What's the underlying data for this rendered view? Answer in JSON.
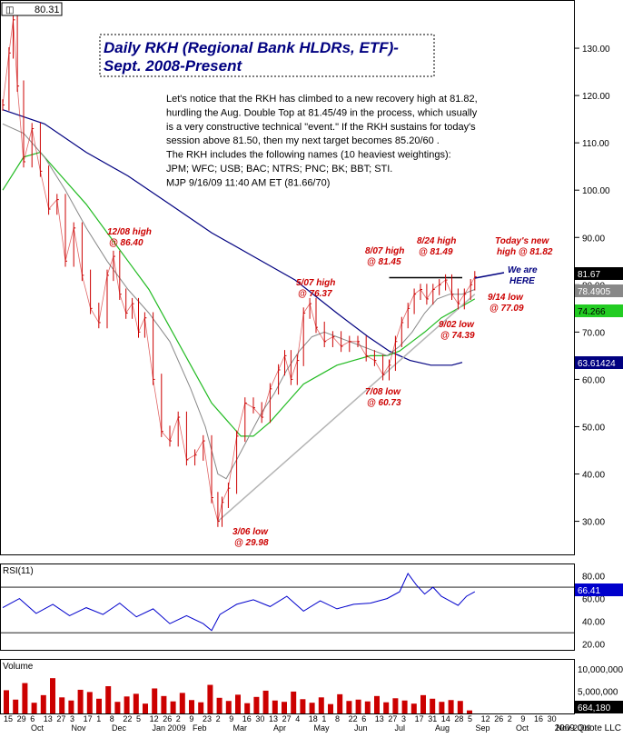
{
  "header": {
    "corner_value": "80.31",
    "title_line1": "Daily RKH (Regional Bank HLDRs, ETF)-",
    "title_line2": "Sept. 2008-Present"
  },
  "commentary": [
    "Let's notice that the RKH has climbed to a new recovery high at 81.82,",
    "hurdling the Aug. Double Top at 81.45/49 in the process, which usually",
    "is a very constructive technical \"event.\"  If the RKH sustains for today's",
    "session above 81.50, then my next target becomes 85.20/60 .",
    "The RKH includes the following names (10 heaviest weightings):",
    "JPM; WFC; USB; BAC; NTRS; PNC; BK; BBT; STI.",
    "MJP  9/16/09  11:40 AM ET  (81.66/70)"
  ],
  "colors": {
    "price": "#cc0000",
    "ma_short": "#888888",
    "ma_mid": "#22bb22",
    "ma_long": "#000080",
    "trendline": "#b4b4b4",
    "annotation": "#cc0000",
    "we_are_here": "#000080",
    "rsi_line": "#0000cc",
    "volume": "#cc0000"
  },
  "chart_data": [
    {
      "type": "line",
      "name": "price",
      "ylim": [
        23,
        140
      ],
      "yticks": [
        30,
        40,
        50,
        60,
        70,
        80,
        90,
        100,
        110,
        120,
        130
      ],
      "ytick_labels": [
        "30.00",
        "40.00",
        "50.00",
        "60.00",
        "70.00",
        "80.00",
        "90.00",
        "100.00",
        "110.00",
        "120.00",
        "130.00"
      ],
      "x_tick_labels": [
        "15",
        "29",
        "6",
        "13",
        "27",
        "3",
        "17",
        "1",
        "8",
        "22",
        "5",
        "12",
        "26",
        "2",
        "9",
        "23",
        "2",
        "9",
        "16",
        "30",
        "13",
        "27",
        "4",
        "18",
        "1",
        "8",
        "22",
        "6",
        "13",
        "27",
        "3",
        "17",
        "31",
        "14",
        "28",
        "5",
        "12",
        "26",
        "2",
        "9",
        "16",
        "30"
      ],
      "month_labels": [
        "Oct",
        "Nov",
        "Dec",
        "Jan 2009",
        "Feb",
        "Mar",
        "Apr",
        "May",
        "Jun",
        "Jul",
        "Aug",
        "Sep",
        "Oct",
        "Nov 2009"
      ],
      "price_path": [
        [
          0,
          118
        ],
        [
          3,
          129
        ],
        [
          5,
          136
        ],
        [
          7,
          122
        ],
        [
          10,
          106
        ],
        [
          14,
          113
        ],
        [
          18,
          104
        ],
        [
          22,
          96
        ],
        [
          26,
          98
        ],
        [
          30,
          85
        ],
        [
          34,
          92
        ],
        [
          38,
          82
        ],
        [
          42,
          75
        ],
        [
          46,
          72
        ],
        [
          50,
          82
        ],
        [
          53,
          86
        ],
        [
          56,
          78
        ],
        [
          59,
          74
        ],
        [
          62,
          76
        ],
        [
          65,
          70
        ],
        [
          68,
          73
        ],
        [
          72,
          60
        ],
        [
          76,
          49
        ],
        [
          80,
          47
        ],
        [
          84,
          52
        ],
        [
          88,
          43
        ],
        [
          92,
          44
        ],
        [
          96,
          47
        ],
        [
          100,
          35
        ],
        [
          103,
          30
        ],
        [
          105,
          34
        ],
        [
          108,
          37
        ],
        [
          112,
          48
        ],
        [
          116,
          55
        ],
        [
          120,
          54
        ],
        [
          124,
          52
        ],
        [
          128,
          58
        ],
        [
          132,
          62
        ],
        [
          135,
          65
        ],
        [
          138,
          60
        ],
        [
          141,
          64
        ],
        [
          144,
          74
        ],
        [
          147,
          76
        ],
        [
          150,
          71
        ],
        [
          154,
          68
        ],
        [
          158,
          69
        ],
        [
          162,
          67
        ],
        [
          166,
          68
        ],
        [
          170,
          68
        ],
        [
          174,
          65
        ],
        [
          178,
          64
        ],
        [
          182,
          61
        ],
        [
          185,
          63
        ],
        [
          188,
          68
        ],
        [
          191,
          72
        ],
        [
          194,
          75
        ],
        [
          197,
          78
        ],
        [
          200,
          79
        ],
        [
          203,
          77
        ],
        [
          206,
          79
        ],
        [
          209,
          80
        ],
        [
          212,
          81
        ],
        [
          215,
          78
        ],
        [
          218,
          76
        ],
        [
          221,
          78
        ],
        [
          224,
          80
        ],
        [
          226,
          81.7
        ]
      ],
      "ma_short_path": [
        [
          0,
          114
        ],
        [
          10,
          112
        ],
        [
          20,
          107
        ],
        [
          30,
          100
        ],
        [
          40,
          92
        ],
        [
          50,
          85
        ],
        [
          60,
          79
        ],
        [
          70,
          74
        ],
        [
          80,
          68
        ],
        [
          90,
          58
        ],
        [
          97,
          50
        ],
        [
          103,
          40
        ],
        [
          107,
          39
        ],
        [
          112,
          43
        ],
        [
          118,
          48
        ],
        [
          124,
          53
        ],
        [
          130,
          57
        ],
        [
          136,
          62
        ],
        [
          142,
          66
        ],
        [
          148,
          69
        ],
        [
          154,
          70
        ],
        [
          160,
          69
        ],
        [
          166,
          68
        ],
        [
          172,
          67
        ],
        [
          178,
          66
        ],
        [
          184,
          65
        ],
        [
          190,
          67
        ],
        [
          196,
          70
        ],
        [
          202,
          74
        ],
        [
          208,
          77
        ],
        [
          214,
          78
        ],
        [
          220,
          78
        ],
        [
          226,
          79
        ]
      ],
      "ma_mid_path": [
        [
          0,
          100
        ],
        [
          10,
          107
        ],
        [
          18,
          108
        ],
        [
          28,
          103
        ],
        [
          40,
          97
        ],
        [
          50,
          91
        ],
        [
          60,
          85
        ],
        [
          70,
          79
        ],
        [
          80,
          71
        ],
        [
          90,
          63
        ],
        [
          100,
          55
        ],
        [
          108,
          51
        ],
        [
          114,
          48
        ],
        [
          120,
          48
        ],
        [
          128,
          51
        ],
        [
          136,
          55
        ],
        [
          144,
          59
        ],
        [
          152,
          61
        ],
        [
          160,
          63
        ],
        [
          168,
          64
        ],
        [
          176,
          65
        ],
        [
          184,
          65
        ],
        [
          190,
          66
        ],
        [
          196,
          68
        ],
        [
          202,
          70
        ],
        [
          210,
          73
        ],
        [
          218,
          75
        ],
        [
          226,
          77
        ]
      ],
      "ma_long_path": [
        [
          0,
          117
        ],
        [
          20,
          114
        ],
        [
          40,
          108
        ],
        [
          60,
          103
        ],
        [
          80,
          97
        ],
        [
          100,
          91
        ],
        [
          120,
          86
        ],
        [
          140,
          81
        ],
        [
          160,
          74
        ],
        [
          175,
          69
        ],
        [
          185,
          66
        ],
        [
          195,
          64
        ],
        [
          205,
          63
        ],
        [
          215,
          63
        ],
        [
          220,
          63.6
        ]
      ],
      "trendline_path": [
        [
          103,
          30
        ],
        [
          226,
          78
        ]
      ],
      "resistance_line": [
        [
          185,
          81.5
        ],
        [
          220,
          81.5
        ]
      ],
      "labels": {
        "price_last": "81.67",
        "ma_short_last": "78.4905",
        "ma_mid_last": "74.266",
        "ma_long_last": "63.61424"
      },
      "annotations": [
        {
          "date": "12/08 high",
          "value": "@ 86.40"
        },
        {
          "date": "3/06 low",
          "value": "@ 29.98"
        },
        {
          "date": "5/07 high",
          "value": "@ 76.37"
        },
        {
          "date": "7/08 low",
          "value": "@ 60.73"
        },
        {
          "date": "8/07 high",
          "value": "@ 81.45"
        },
        {
          "date": "8/24 high",
          "value": "@ 81.49"
        },
        {
          "date": "Today's new",
          "value": "high @ 81.82"
        },
        {
          "date": "9/14 low",
          "value": "@ 77.09"
        },
        {
          "date": "9/02 low",
          "value": "@ 74.39"
        }
      ],
      "we_are_here": [
        "We are",
        "HERE"
      ]
    },
    {
      "type": "line",
      "name": "rsi",
      "title": "RSI(11)",
      "ylim": [
        15,
        90
      ],
      "yticks": [
        20,
        40,
        60,
        80
      ],
      "ytick_labels": [
        "20.00",
        "40.00",
        "60.00",
        "80.00"
      ],
      "reference_lines": [
        30,
        70
      ],
      "last_label": "66.41",
      "path": [
        [
          0,
          52
        ],
        [
          8,
          60
        ],
        [
          16,
          47
        ],
        [
          24,
          55
        ],
        [
          32,
          45
        ],
        [
          40,
          52
        ],
        [
          48,
          46
        ],
        [
          56,
          56
        ],
        [
          64,
          44
        ],
        [
          72,
          51
        ],
        [
          80,
          38
        ],
        [
          88,
          45
        ],
        [
          96,
          38
        ],
        [
          100,
          32
        ],
        [
          104,
          46
        ],
        [
          112,
          55
        ],
        [
          120,
          59
        ],
        [
          128,
          53
        ],
        [
          136,
          62
        ],
        [
          144,
          49
        ],
        [
          152,
          58
        ],
        [
          160,
          51
        ],
        [
          168,
          55
        ],
        [
          176,
          56
        ],
        [
          184,
          60
        ],
        [
          190,
          66
        ],
        [
          194,
          82
        ],
        [
          198,
          72
        ],
        [
          202,
          64
        ],
        [
          206,
          70
        ],
        [
          210,
          62
        ],
        [
          214,
          58
        ],
        [
          218,
          54
        ],
        [
          222,
          62
        ],
        [
          226,
          66
        ]
      ]
    },
    {
      "type": "bar",
      "name": "volume",
      "title": "Volume",
      "ylim": [
        0,
        12000000
      ],
      "yticks": [
        5000000,
        10000000
      ],
      "ytick_labels": [
        "5,000,000",
        "10,000,000"
      ],
      "last_label": "684,180",
      "values": [
        5200000,
        3100000,
        6800000,
        2400000,
        4100000,
        7900000,
        3600000,
        2900000,
        5300000,
        4800000,
        3300000,
        6100000,
        2600000,
        3800000,
        4400000,
        2200000,
        5600000,
        3900000,
        2700000,
        4600000,
        3000000,
        2500000,
        6400000,
        3500000,
        2800000,
        4200000,
        2300000,
        3700000,
        5100000,
        2900000,
        2600000,
        4900000,
        3200000,
        2400000,
        3600000,
        2100000,
        4300000,
        2800000,
        3100000,
        2700000,
        3900000,
        2500000,
        3400000,
        2900000,
        2200000,
        4100000,
        3300000,
        2600000,
        3000000,
        2800000,
        684180
      ]
    }
  ],
  "footer": {
    "copyright": "2009 Quote LLC"
  }
}
